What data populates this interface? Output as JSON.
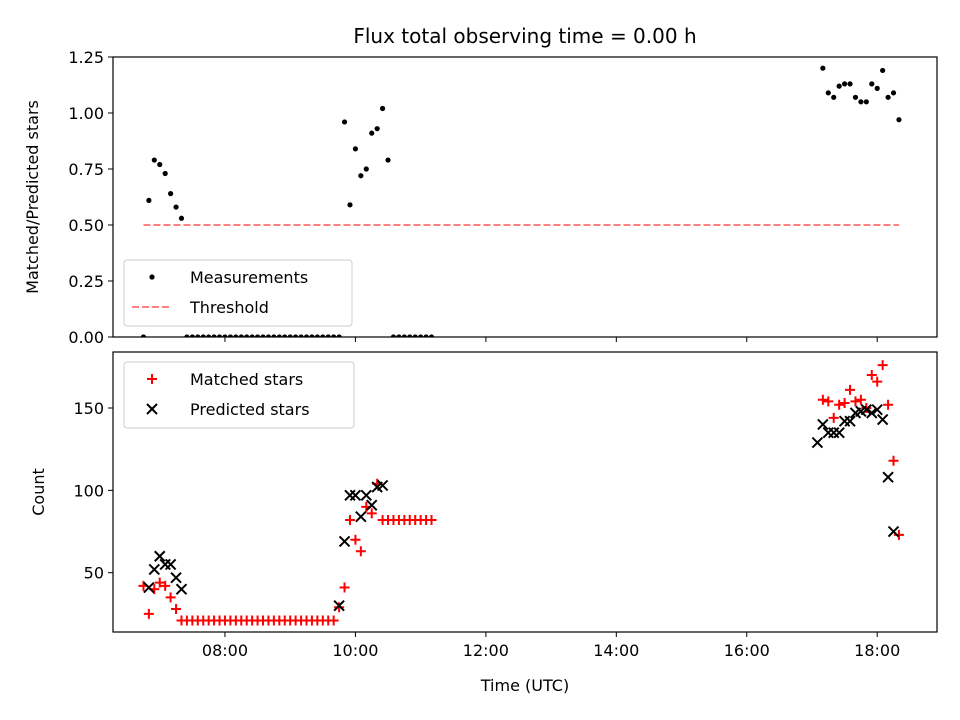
{
  "title": "Flux total observing time = 0.00 h",
  "colors": {
    "measurement": "#000000",
    "threshold": "#ff8080",
    "matched": "#ff0000",
    "predicted": "#000000"
  },
  "chart_data": [
    {
      "type": "scatter",
      "ylabel": "Matched/Predicted stars",
      "xlim": [
        "06:17",
        "18:55"
      ],
      "ylim": [
        0,
        1.25
      ],
      "x_ticks": [
        "08:00",
        "10:00",
        "12:00",
        "14:00",
        "16:00",
        "18:00"
      ],
      "y_ticks": [
        "0.00",
        "0.25",
        "0.50",
        "0.75",
        "1.00",
        "1.25"
      ],
      "legend_position": "lower-left",
      "series": [
        {
          "name": "Measurements",
          "marker": "dot",
          "points": [
            [
              "06:45",
              0.0
            ],
            [
              "06:50",
              0.61
            ],
            [
              "06:55",
              0.79
            ],
            [
              "07:00",
              0.77
            ],
            [
              "07:05",
              0.73
            ],
            [
              "07:10",
              0.64
            ],
            [
              "07:15",
              0.58
            ],
            [
              "07:20",
              0.53
            ],
            [
              "07:25",
              0.0
            ],
            [
              "07:30",
              0.0
            ],
            [
              "07:35",
              0.0
            ],
            [
              "07:40",
              0.0
            ],
            [
              "07:45",
              0.0
            ],
            [
              "07:50",
              0.0
            ],
            [
              "07:55",
              0.0
            ],
            [
              "08:00",
              0.0
            ],
            [
              "08:05",
              0.0
            ],
            [
              "08:10",
              0.0
            ],
            [
              "08:15",
              0.0
            ],
            [
              "08:20",
              0.0
            ],
            [
              "08:25",
              0.0
            ],
            [
              "08:30",
              0.0
            ],
            [
              "08:35",
              0.0
            ],
            [
              "08:40",
              0.0
            ],
            [
              "08:45",
              0.0
            ],
            [
              "08:50",
              0.0
            ],
            [
              "08:55",
              0.0
            ],
            [
              "09:00",
              0.0
            ],
            [
              "09:05",
              0.0
            ],
            [
              "09:10",
              0.0
            ],
            [
              "09:15",
              0.0
            ],
            [
              "09:20",
              0.0
            ],
            [
              "09:25",
              0.0
            ],
            [
              "09:30",
              0.0
            ],
            [
              "09:35",
              0.0
            ],
            [
              "09:40",
              0.0
            ],
            [
              "09:45",
              0.0
            ],
            [
              "09:50",
              0.96
            ],
            [
              "09:55",
              0.59
            ],
            [
              "10:00",
              0.84
            ],
            [
              "10:05",
              0.72
            ],
            [
              "10:10",
              0.75
            ],
            [
              "10:15",
              0.91
            ],
            [
              "10:20",
              0.93
            ],
            [
              "10:25",
              1.02
            ],
            [
              "10:30",
              0.79
            ],
            [
              "10:35",
              0.0
            ],
            [
              "10:40",
              0.0
            ],
            [
              "10:45",
              0.0
            ],
            [
              "10:50",
              0.0
            ],
            [
              "10:55",
              0.0
            ],
            [
              "11:00",
              0.0
            ],
            [
              "11:05",
              0.0
            ],
            [
              "11:10",
              0.0
            ],
            [
              "17:10",
              1.2
            ],
            [
              "17:15",
              1.09
            ],
            [
              "17:20",
              1.07
            ],
            [
              "17:25",
              1.12
            ],
            [
              "17:30",
              1.13
            ],
            [
              "17:35",
              1.13
            ],
            [
              "17:40",
              1.07
            ],
            [
              "17:45",
              1.05
            ],
            [
              "17:50",
              1.05
            ],
            [
              "17:55",
              1.13
            ],
            [
              "18:00",
              1.11
            ],
            [
              "18:05",
              1.19
            ],
            [
              "18:10",
              1.07
            ],
            [
              "18:15",
              1.09
            ],
            [
              "18:20",
              0.97
            ]
          ]
        },
        {
          "name": "Threshold",
          "marker": "dashed-line",
          "points": [
            [
              "06:45",
              0.5
            ],
            [
              "18:20",
              0.5
            ]
          ]
        }
      ]
    },
    {
      "type": "scatter",
      "xlabel": "Time (UTC)",
      "ylabel": "Count",
      "xlim": [
        "06:17",
        "18:55"
      ],
      "ylim": [
        14,
        184
      ],
      "x_ticks": [
        "08:00",
        "10:00",
        "12:00",
        "14:00",
        "16:00",
        "18:00"
      ],
      "y_ticks": [
        "50",
        "100",
        "150"
      ],
      "legend_position": "top-left",
      "series": [
        {
          "name": "Matched stars",
          "marker": "plus",
          "points": [
            [
              "06:45",
              42
            ],
            [
              "06:50",
              25
            ],
            [
              "06:55",
              40
            ],
            [
              "07:00",
              44
            ],
            [
              "07:05",
              42
            ],
            [
              "07:10",
              35
            ],
            [
              "07:15",
              28
            ],
            [
              "07:20",
              21
            ],
            [
              "07:25",
              21
            ],
            [
              "07:30",
              21
            ],
            [
              "07:35",
              21
            ],
            [
              "07:40",
              21
            ],
            [
              "07:45",
              21
            ],
            [
              "07:50",
              21
            ],
            [
              "07:55",
              21
            ],
            [
              "08:00",
              21
            ],
            [
              "08:05",
              21
            ],
            [
              "08:10",
              21
            ],
            [
              "08:15",
              21
            ],
            [
              "08:20",
              21
            ],
            [
              "08:25",
              21
            ],
            [
              "08:30",
              21
            ],
            [
              "08:35",
              21
            ],
            [
              "08:40",
              21
            ],
            [
              "08:45",
              21
            ],
            [
              "08:50",
              21
            ],
            [
              "08:55",
              21
            ],
            [
              "09:00",
              21
            ],
            [
              "09:05",
              21
            ],
            [
              "09:10",
              21
            ],
            [
              "09:15",
              21
            ],
            [
              "09:20",
              21
            ],
            [
              "09:25",
              21
            ],
            [
              "09:30",
              21
            ],
            [
              "09:35",
              21
            ],
            [
              "09:40",
              21
            ],
            [
              "09:45",
              29
            ],
            [
              "09:50",
              41
            ],
            [
              "09:55",
              82
            ],
            [
              "10:00",
              70
            ],
            [
              "10:05",
              63
            ],
            [
              "10:10",
              90
            ],
            [
              "10:15",
              86
            ],
            [
              "10:20",
              104
            ],
            [
              "10:25",
              82
            ],
            [
              "10:30",
              82
            ],
            [
              "10:35",
              82
            ],
            [
              "10:40",
              82
            ],
            [
              "10:45",
              82
            ],
            [
              "10:50",
              82
            ],
            [
              "10:55",
              82
            ],
            [
              "11:00",
              82
            ],
            [
              "11:05",
              82
            ],
            [
              "11:10",
              82
            ],
            [
              "17:10",
              155
            ],
            [
              "17:15",
              154
            ],
            [
              "17:20",
              144
            ],
            [
              "17:25",
              152
            ],
            [
              "17:30",
              153
            ],
            [
              "17:35",
              161
            ],
            [
              "17:40",
              154
            ],
            [
              "17:45",
              155
            ],
            [
              "17:50",
              150
            ],
            [
              "17:55",
              170
            ],
            [
              "18:00",
              166
            ],
            [
              "18:05",
              176
            ],
            [
              "18:10",
              152
            ],
            [
              "18:15",
              118
            ],
            [
              "18:20",
              73
            ]
          ]
        },
        {
          "name": "Predicted stars",
          "marker": "x",
          "points": [
            [
              "06:50",
              41
            ],
            [
              "06:55",
              52
            ],
            [
              "07:00",
              60
            ],
            [
              "07:05",
              55
            ],
            [
              "07:10",
              55
            ],
            [
              "07:15",
              47
            ],
            [
              "07:20",
              40
            ],
            [
              "09:45",
              30
            ],
            [
              "09:50",
              69
            ],
            [
              "09:55",
              97
            ],
            [
              "10:00",
              97
            ],
            [
              "10:05",
              84
            ],
            [
              "10:10",
              97
            ],
            [
              "10:15",
              91
            ],
            [
              "10:20",
              102
            ],
            [
              "10:25",
              103
            ],
            [
              "17:05",
              129
            ],
            [
              "17:10",
              140
            ],
            [
              "17:15",
              135
            ],
            [
              "17:20",
              135
            ],
            [
              "17:25",
              135
            ],
            [
              "17:30",
              142
            ],
            [
              "17:35",
              142
            ],
            [
              "17:40",
              147
            ],
            [
              "17:45",
              148
            ],
            [
              "17:50",
              149
            ],
            [
              "17:55",
              147
            ],
            [
              "18:00",
              149
            ],
            [
              "18:05",
              143
            ],
            [
              "18:10",
              108
            ],
            [
              "18:15",
              75
            ]
          ]
        }
      ]
    }
  ]
}
